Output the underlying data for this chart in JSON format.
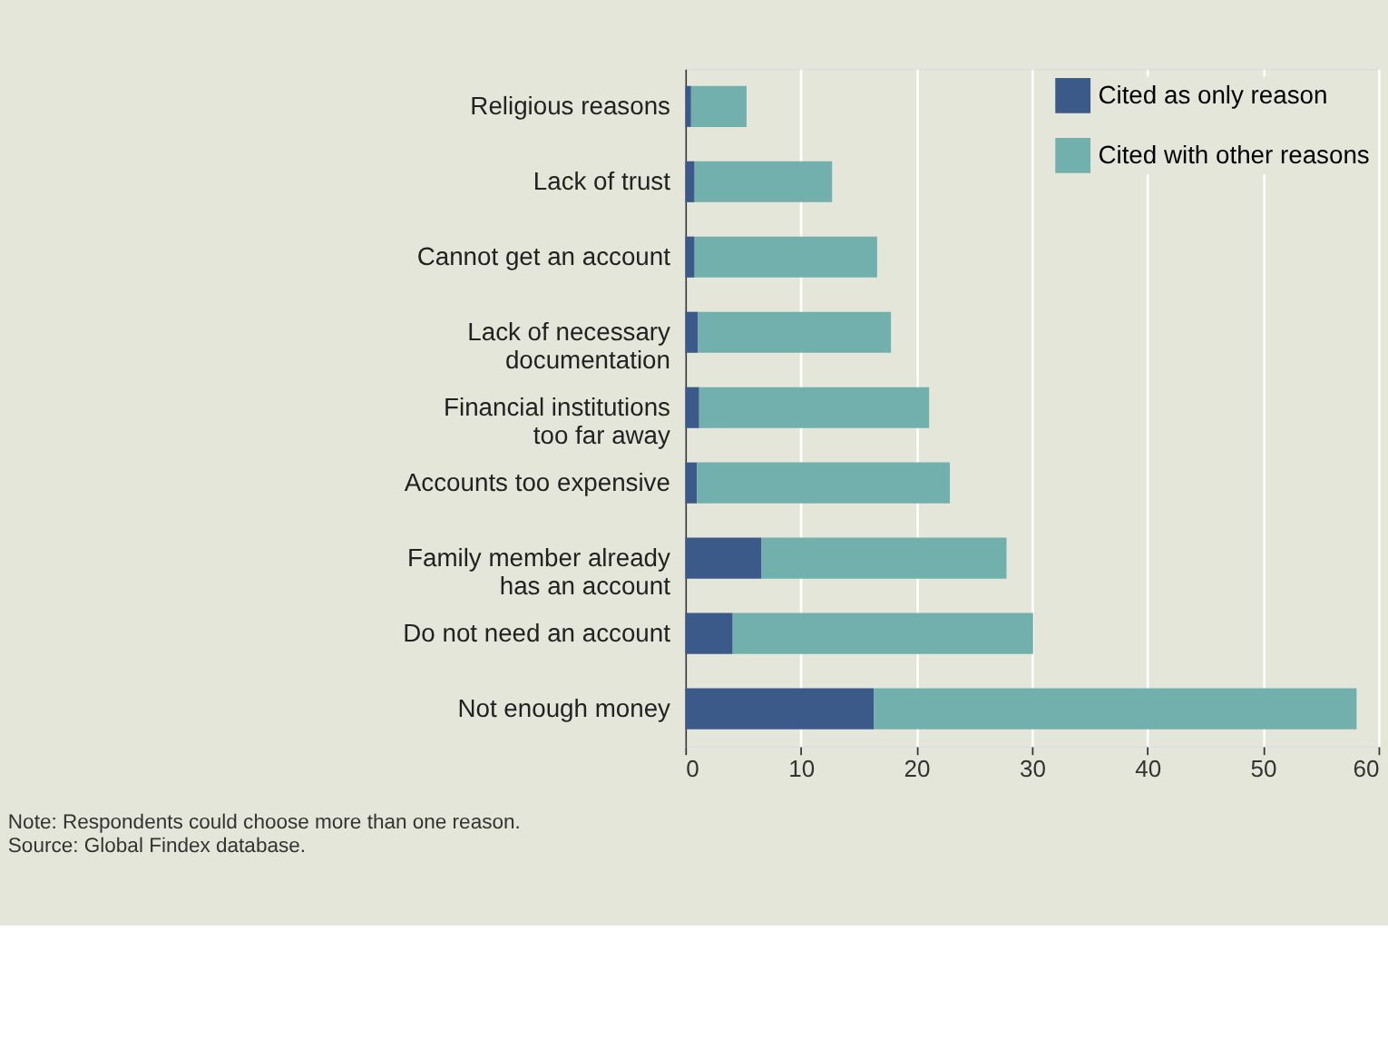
{
  "chart_data": {
    "type": "bar",
    "orientation": "horizontal",
    "stacked": true,
    "categories": [
      "Religious reasons",
      "Lack of trust",
      "Cannot get an account",
      "Lack of necessary\ndocumentation",
      "Financial institutions\ntoo far away",
      "Accounts too expensive",
      "Family member already\nhas an account",
      "Do not need an account",
      "Not enough money"
    ],
    "series": [
      {
        "name": "Cited as only reason",
        "color": "#3b5a8a",
        "values": [
          0.5,
          0.8,
          0.8,
          1.1,
          1.2,
          1.0,
          6.6,
          4.1,
          16.3
        ]
      },
      {
        "name": "Cited with other reasons",
        "color": "#72b0ad",
        "values": [
          4.8,
          11.9,
          15.8,
          16.7,
          19.9,
          21.9,
          21.2,
          26.0,
          41.8
        ]
      }
    ],
    "xlim": [
      0,
      60
    ],
    "xticks": [
      0,
      10,
      20,
      30,
      40,
      50,
      60
    ],
    "grid": "x",
    "legend": "top right",
    "annotations": [
      "Note: Respondents could choose more than one reason.",
      "Source: Global Findex database."
    ]
  }
}
